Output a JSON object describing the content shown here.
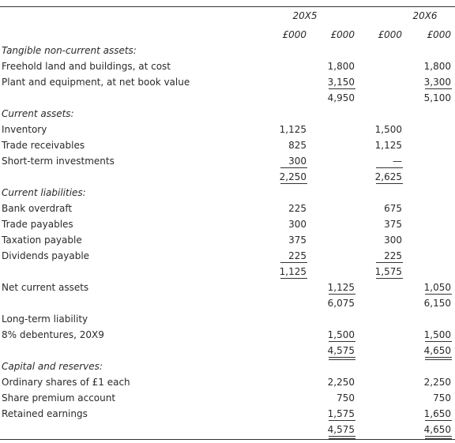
{
  "header": {
    "years": [
      "20X5",
      "20X6"
    ],
    "units": [
      "£000",
      "£000",
      "£000",
      "£000"
    ]
  },
  "rows": [
    [
      "Tangible non-current assets:",
      null,
      null,
      null,
      null
    ],
    [
      "Freehold land and buildings, at cost",
      null,
      "1,800",
      null,
      "1,800"
    ],
    [
      "Plant and equipment, at net book value",
      null,
      "3,150",
      null,
      "3,300"
    ],
    [
      null,
      null,
      "4,950",
      null,
      "5,100"
    ],
    [
      "Current assets:",
      null,
      null,
      null,
      null
    ],
    [
      "Inventory",
      "1,125",
      null,
      "1,500",
      null
    ],
    [
      "Trade receivables",
      "825",
      null,
      "1,125",
      null
    ],
    [
      "Short-term investments",
      "300",
      null,
      "—",
      null
    ],
    [
      null,
      "2,250",
      null,
      "2,625",
      null
    ],
    [
      "Current liabilities:",
      null,
      null,
      null,
      null
    ],
    [
      "Bank overdraft",
      "225",
      null,
      "675",
      null
    ],
    [
      "Trade payables",
      "300",
      null,
      "375",
      null
    ],
    [
      "Taxation payable",
      "375",
      null,
      "300",
      null
    ],
    [
      "Dividends payable",
      "225",
      null,
      "225",
      null
    ],
    [
      null,
      "1,125",
      null,
      "1,575",
      null
    ],
    [
      "Net current assets",
      null,
      "1,125",
      null,
      "1,050"
    ],
    [
      null,
      null,
      "6,075",
      null,
      "6,150"
    ],
    [
      "Long-term liability",
      null,
      null,
      null,
      null
    ],
    [
      "8% debentures, 20X9",
      null,
      "1,500",
      null,
      "1,500"
    ],
    [
      null,
      null,
      "4,575",
      null,
      "4,650"
    ],
    [
      "Capital and reserves:",
      null,
      null,
      null,
      null
    ],
    [
      "Ordinary shares of £1 each",
      null,
      "2,250",
      null,
      "2,250"
    ],
    [
      "Share premium account",
      null,
      "750",
      null,
      "750"
    ],
    [
      "Retained earnings",
      null,
      "1,575",
      null,
      "1,650"
    ],
    [
      null,
      null,
      "4,575",
      null,
      "4,650"
    ]
  ]
}
